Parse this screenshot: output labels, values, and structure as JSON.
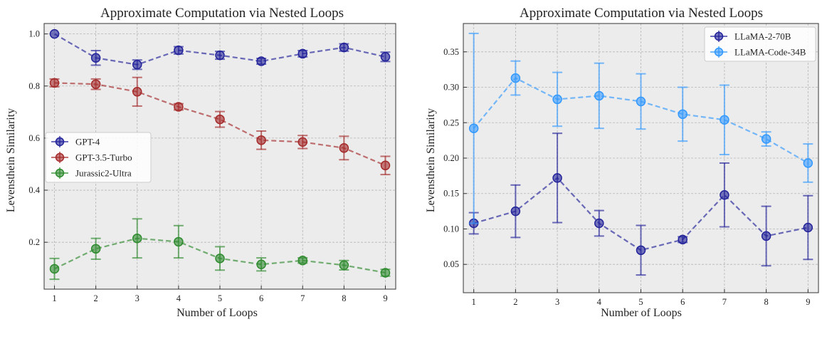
{
  "chart_data": [
    {
      "type": "line",
      "title": "Approximate Computation via Nested Loops",
      "xlabel": "Number of Loops",
      "ylabel": "Levensthein Similarity",
      "x": [
        1,
        2,
        3,
        4,
        5,
        6,
        7,
        8,
        9
      ],
      "xlim": [
        0.75,
        9.25
      ],
      "ylim": [
        0.02,
        1.04
      ],
      "yticks": [
        0.2,
        0.4,
        0.6,
        0.8,
        1.0
      ],
      "ytick_labels": [
        "0.2",
        "0.4",
        "0.6",
        "0.8",
        "1.0"
      ],
      "grid": true,
      "legend_position": "center-left",
      "series": [
        {
          "name": "GPT-4",
          "color": "#22229a",
          "values": [
            1.0,
            0.908,
            0.882,
            0.937,
            0.918,
            0.895,
            0.924,
            0.948,
            0.912
          ],
          "errors": [
            0.0,
            0.028,
            0.018,
            0.014,
            0.015,
            0.011,
            0.012,
            0.014,
            0.018
          ]
        },
        {
          "name": "GPT-3.5-Turbo",
          "color": "#a52a2a",
          "values": [
            0.812,
            0.807,
            0.778,
            0.72,
            0.672,
            0.592,
            0.585,
            0.562,
            0.495
          ],
          "errors": [
            0.015,
            0.02,
            0.055,
            0.012,
            0.03,
            0.035,
            0.025,
            0.045,
            0.035
          ]
        },
        {
          "name": "Jurassic2-Ultra",
          "color": "#2e8b2e",
          "values": [
            0.098,
            0.175,
            0.215,
            0.202,
            0.138,
            0.115,
            0.13,
            0.112,
            0.083
          ],
          "errors": [
            0.04,
            0.04,
            0.075,
            0.062,
            0.045,
            0.025,
            0.01,
            0.018,
            0.013
          ]
        }
      ]
    },
    {
      "type": "line",
      "title": "Approximate Computation via Nested Loops",
      "xlabel": "Number of Loops",
      "ylabel": "Levensthein Similarity",
      "x": [
        1,
        2,
        3,
        4,
        5,
        6,
        7,
        8,
        9
      ],
      "xlim": [
        0.75,
        9.25
      ],
      "ylim": [
        0.01,
        0.39
      ],
      "yticks": [
        0.05,
        0.1,
        0.15,
        0.2,
        0.25,
        0.3,
        0.35
      ],
      "ytick_labels": [
        "0.05",
        "0.10",
        "0.15",
        "0.20",
        "0.25",
        "0.30",
        "0.35"
      ],
      "grid": true,
      "legend_position": "top-right",
      "series": [
        {
          "name": "LLaMA-2-70B",
          "color": "#22229a",
          "values": [
            0.108,
            0.125,
            0.172,
            0.108,
            0.07,
            0.085,
            0.148,
            0.09,
            0.102
          ],
          "errors": [
            0.015,
            0.037,
            0.063,
            0.018,
            0.035,
            0.004,
            0.045,
            0.042,
            0.045
          ]
        },
        {
          "name": "LLaMA-Code-34B",
          "color": "#3399ff",
          "values": [
            0.242,
            0.313,
            0.283,
            0.288,
            0.28,
            0.262,
            0.254,
            0.227,
            0.193
          ],
          "errors": [
            0.134,
            0.024,
            0.038,
            0.046,
            0.039,
            0.038,
            0.049,
            0.01,
            0.027
          ]
        }
      ]
    }
  ]
}
